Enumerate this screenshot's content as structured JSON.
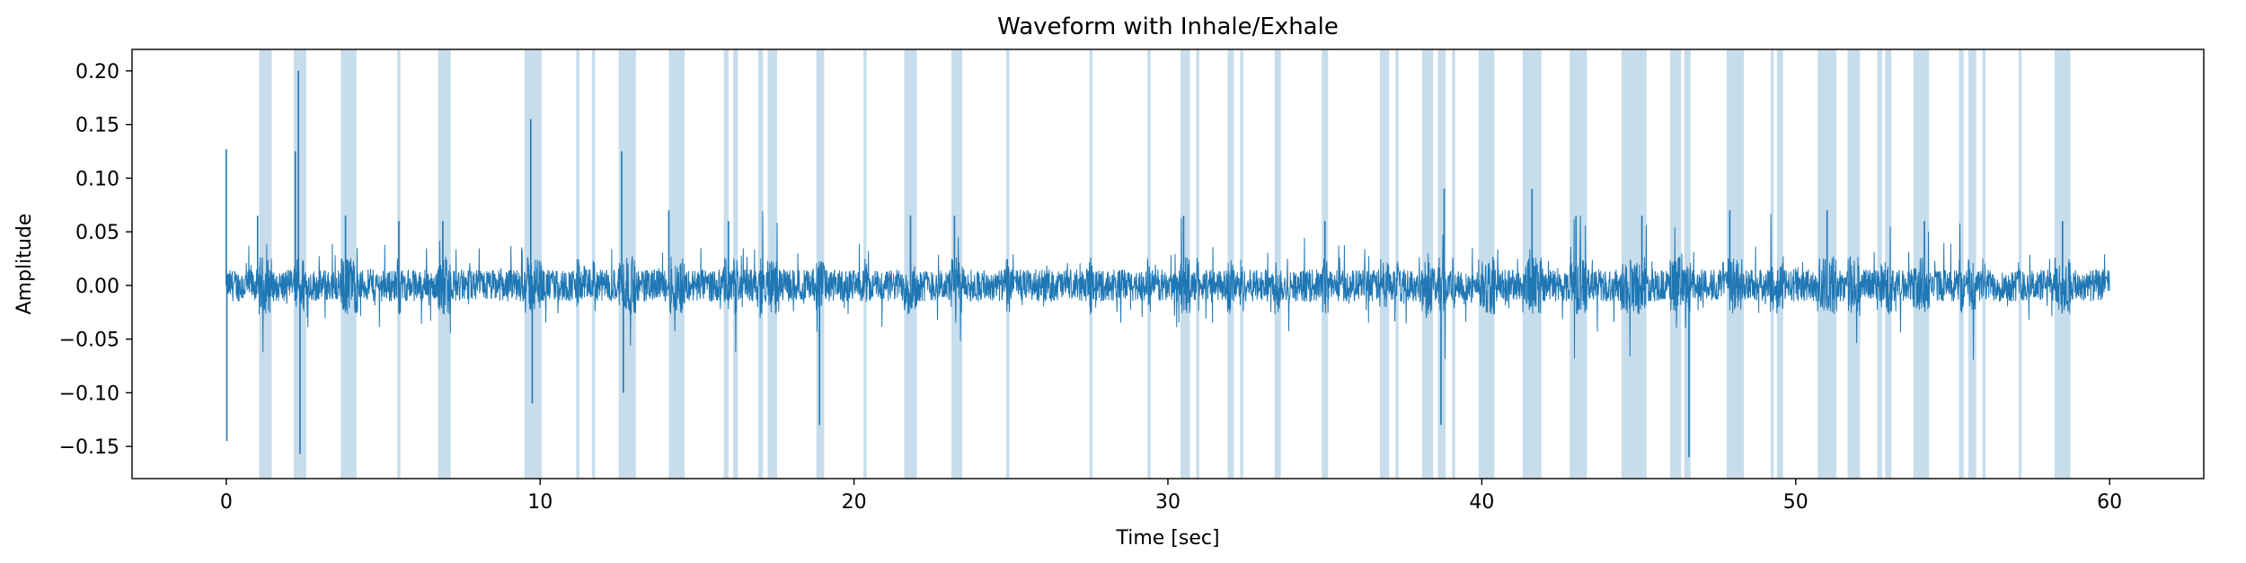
{
  "chart_data": {
    "type": "line",
    "title": "Waveform with Inhale/Exhale",
    "xlabel": "Time [sec]",
    "ylabel": "Amplitude",
    "xlim": [
      -3,
      63
    ],
    "ylim": [
      -0.18,
      0.22
    ],
    "xticks": [
      0,
      10,
      20,
      30,
      40,
      50,
      60
    ],
    "yticks": [
      -0.15,
      -0.1,
      -0.05,
      0.0,
      0.05,
      0.1,
      0.15,
      0.2
    ],
    "xtick_labels": [
      "0",
      "10",
      "20",
      "30",
      "40",
      "50",
      "60"
    ],
    "ytick_labels": [
      "−0.15",
      "−0.10",
      "−0.05",
      "0.00",
      "0.05",
      "0.10",
      "0.15",
      "0.20"
    ],
    "grid": false,
    "series": [
      {
        "color": "#1f77b4",
        "x_range": [
          0,
          60
        ],
        "noise_amplitude": 0.015,
        "spikes": [
          {
            "x": 0.0,
            "y": 0.127
          },
          {
            "x": 0.02,
            "y": -0.145
          },
          {
            "x": 2.3,
            "y": 0.2
          },
          {
            "x": 2.35,
            "y": -0.157
          },
          {
            "x": 2.2,
            "y": 0.125
          },
          {
            "x": 9.7,
            "y": 0.155
          },
          {
            "x": 9.75,
            "y": -0.11
          },
          {
            "x": 12.6,
            "y": 0.125
          },
          {
            "x": 12.65,
            "y": -0.1
          },
          {
            "x": 18.9,
            "y": -0.13
          },
          {
            "x": 41.6,
            "y": 0.09
          },
          {
            "x": 46.6,
            "y": -0.16
          },
          {
            "x": 38.7,
            "y": -0.13
          },
          {
            "x": 38.8,
            "y": 0.09
          },
          {
            "x": 1.0,
            "y": 0.065
          },
          {
            "x": 3.8,
            "y": 0.065
          },
          {
            "x": 5.5,
            "y": 0.06
          },
          {
            "x": 6.9,
            "y": 0.06
          },
          {
            "x": 14.1,
            "y": 0.07
          },
          {
            "x": 16.0,
            "y": 0.06
          },
          {
            "x": 21.8,
            "y": 0.065
          },
          {
            "x": 23.2,
            "y": 0.065
          },
          {
            "x": 30.5,
            "y": 0.065
          },
          {
            "x": 35.0,
            "y": 0.06
          },
          {
            "x": 43.0,
            "y": 0.065
          },
          {
            "x": 45.1,
            "y": 0.065
          },
          {
            "x": 47.9,
            "y": 0.07
          },
          {
            "x": 51.0,
            "y": 0.07
          },
          {
            "x": 54.1,
            "y": 0.06
          },
          {
            "x": 58.5,
            "y": 0.06
          }
        ]
      }
    ],
    "shaded_regions": {
      "color": "#1f77b4",
      "opacity": 0.25,
      "spans": [
        [
          1.05,
          1.45
        ],
        [
          2.15,
          2.55
        ],
        [
          3.65,
          4.15
        ],
        [
          5.45,
          5.55
        ],
        [
          6.75,
          7.15
        ],
        [
          9.5,
          10.05
        ],
        [
          11.15,
          11.25
        ],
        [
          11.65,
          11.75
        ],
        [
          12.5,
          13.05
        ],
        [
          14.1,
          14.6
        ],
        [
          15.85,
          16.0
        ],
        [
          16.15,
          16.3
        ],
        [
          16.95,
          17.1
        ],
        [
          17.25,
          17.55
        ],
        [
          18.8,
          19.05
        ],
        [
          20.3,
          20.4
        ],
        [
          21.6,
          22.0
        ],
        [
          23.1,
          23.45
        ],
        [
          24.85,
          24.95
        ],
        [
          27.5,
          27.6
        ],
        [
          29.35,
          29.45
        ],
        [
          30.4,
          30.7
        ],
        [
          30.9,
          31.0
        ],
        [
          31.9,
          32.1
        ],
        [
          32.3,
          32.4
        ],
        [
          33.4,
          33.6
        ],
        [
          34.9,
          35.1
        ],
        [
          36.75,
          37.05
        ],
        [
          37.25,
          37.35
        ],
        [
          38.1,
          38.45
        ],
        [
          38.6,
          38.85
        ],
        [
          39.05,
          39.15
        ],
        [
          39.9,
          40.4
        ],
        [
          41.3,
          41.9
        ],
        [
          42.8,
          43.35
        ],
        [
          44.45,
          45.25
        ],
        [
          46.0,
          46.35
        ],
        [
          46.45,
          46.65
        ],
        [
          47.8,
          48.35
        ],
        [
          49.2,
          49.3
        ],
        [
          49.4,
          49.6
        ],
        [
          50.7,
          51.3
        ],
        [
          51.65,
          52.05
        ],
        [
          52.6,
          52.75
        ],
        [
          52.85,
          53.05
        ],
        [
          53.75,
          54.25
        ],
        [
          55.2,
          55.35
        ],
        [
          55.5,
          55.75
        ],
        [
          55.95,
          56.05
        ],
        [
          57.1,
          57.2
        ],
        [
          58.25,
          58.75
        ]
      ]
    }
  }
}
